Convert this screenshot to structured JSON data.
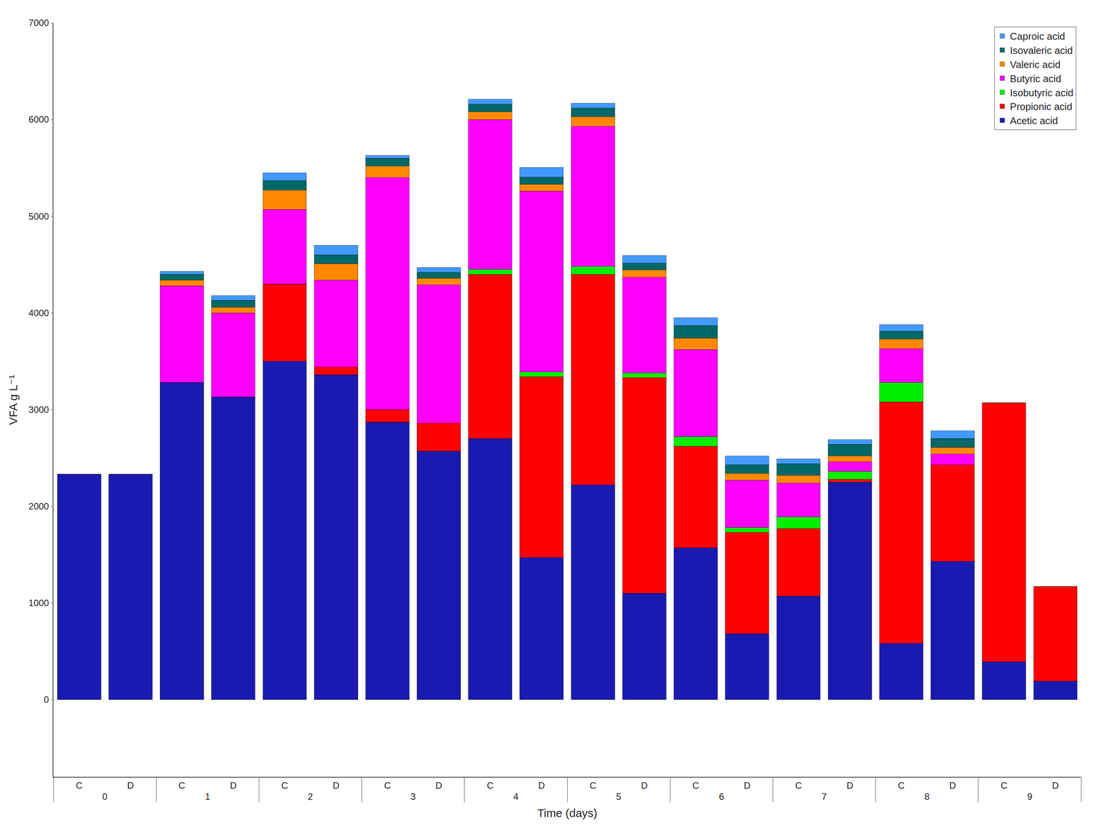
{
  "chart_data": {
    "type": "bar",
    "stacked": true,
    "xlabel": "Time (days)",
    "ylabel": "VFA g L⁻¹",
    "categories": [
      [
        0,
        "C"
      ],
      [
        0,
        "D"
      ],
      [
        1,
        "C"
      ],
      [
        1,
        "D"
      ],
      [
        2,
        "C"
      ],
      [
        2,
        "D"
      ],
      [
        3,
        "C"
      ],
      [
        3,
        "D"
      ],
      [
        4,
        "C"
      ],
      [
        4,
        "D"
      ],
      [
        5,
        "C"
      ],
      [
        5,
        "D"
      ],
      [
        6,
        "C"
      ],
      [
        6,
        "D"
      ],
      [
        7,
        "C"
      ],
      [
        7,
        "D"
      ],
      [
        8,
        "C"
      ],
      [
        8,
        "D"
      ],
      [
        9,
        "C"
      ],
      [
        9,
        "D"
      ]
    ],
    "series": [
      {
        "name": "Acetic acid",
        "color": "#1a1ab0",
        "values": [
          2330,
          2330,
          3280,
          3130,
          3500,
          3360,
          2870,
          2570,
          2700,
          1470,
          2220,
          1100,
          1570,
          680,
          1070,
          2250,
          580,
          1430,
          390,
          190
        ]
      },
      {
        "name": "Propionic acid",
        "color": "#ff0000",
        "values": [
          0,
          0,
          0,
          0,
          800,
          80,
          130,
          290,
          1700,
          1870,
          2180,
          2230,
          1050,
          1050,
          700,
          30,
          2500,
          1000,
          2680,
          980
        ]
      },
      {
        "name": "Isobutyric acid",
        "color": "#00ee00",
        "values": [
          0,
          0,
          0,
          0,
          0,
          0,
          0,
          0,
          50,
          50,
          80,
          50,
          100,
          50,
          120,
          80,
          200,
          0,
          0,
          0
        ]
      },
      {
        "name": "Butyric acid",
        "color": "#ff00ff",
        "values": [
          0,
          0,
          1000,
          870,
          770,
          900,
          2400,
          1430,
          1550,
          1870,
          1450,
          990,
          900,
          490,
          350,
          100,
          350,
          110,
          0,
          0
        ]
      },
      {
        "name": "Valeric acid",
        "color": "#ff8800",
        "values": [
          0,
          0,
          60,
          60,
          200,
          170,
          120,
          70,
          80,
          70,
          100,
          75,
          120,
          70,
          80,
          60,
          100,
          70,
          0,
          0
        ]
      },
      {
        "name": "Isovaleric acid",
        "color": "#006868",
        "values": [
          0,
          0,
          60,
          70,
          100,
          90,
          80,
          60,
          80,
          75,
          90,
          70,
          130,
          90,
          120,
          120,
          80,
          90,
          0,
          0
        ]
      },
      {
        "name": "Caproic acid",
        "color": "#4499ff",
        "values": [
          0,
          0,
          30,
          50,
          80,
          100,
          30,
          50,
          50,
          100,
          50,
          80,
          80,
          90,
          50,
          50,
          70,
          80,
          0,
          0
        ]
      }
    ],
    "ylim": [
      -800,
      7000
    ],
    "yticks": [
      0,
      1000,
      2000,
      3000,
      4000,
      5000,
      6000,
      7000
    ],
    "grid": false,
    "legend": "upper right"
  }
}
